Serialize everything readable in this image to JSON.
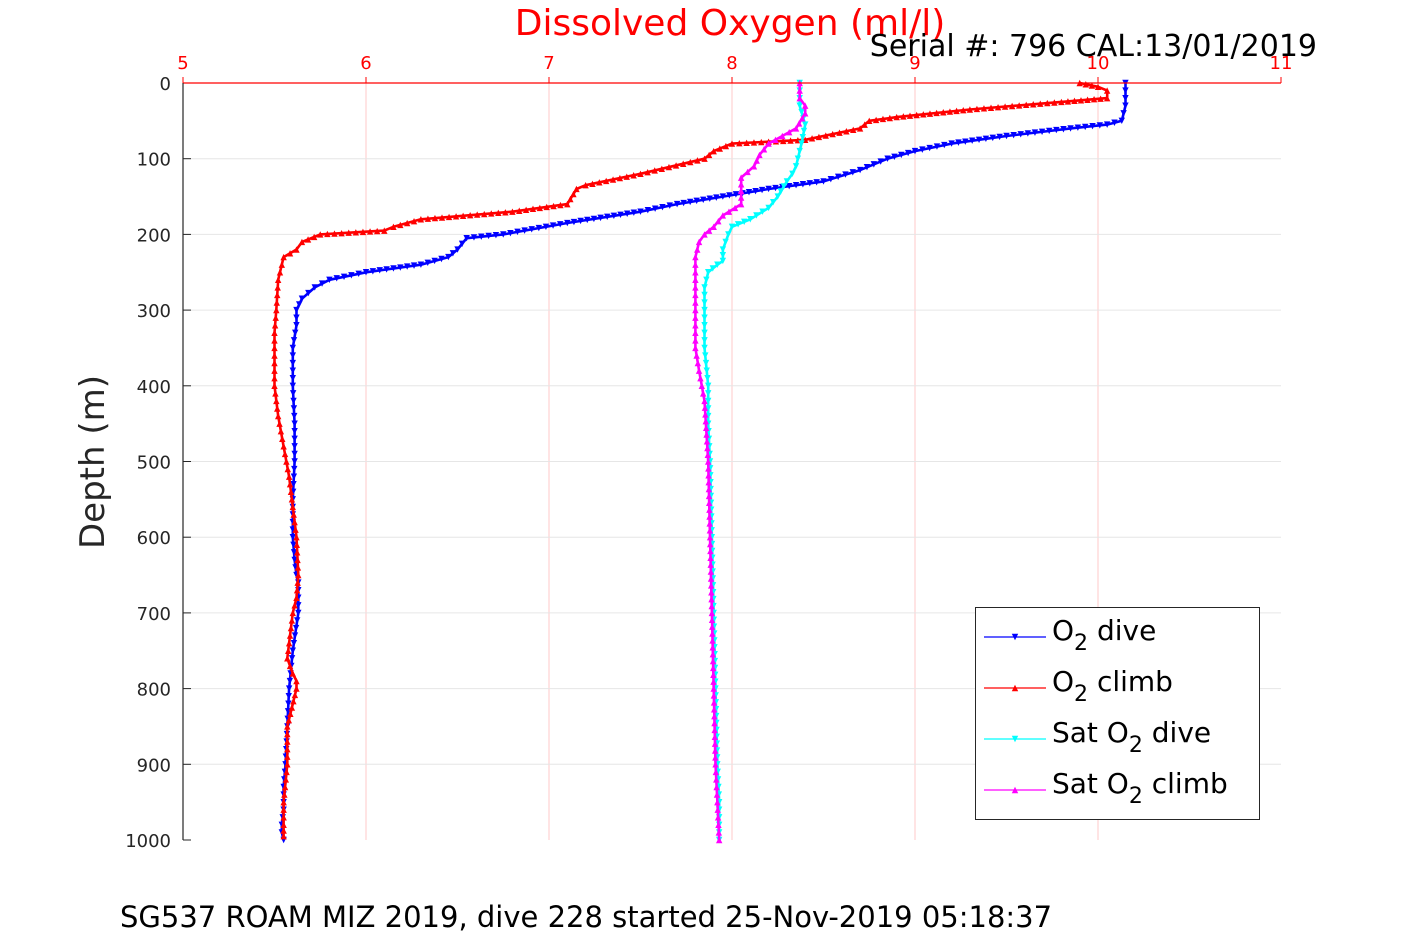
{
  "chart_data": {
    "type": "scatter",
    "title": "Dissolved Oxygen (ml/l)",
    "annotation": "Serial #: 796  CAL:13/01/2019",
    "footer": "SG537 ROAM MIZ 2019, dive 228 started 25-Nov-2019 05:18:37",
    "xlabel": "",
    "ylabel": "Depth (m)",
    "xlim": [
      5,
      11
    ],
    "ylim": [
      0,
      1000
    ],
    "y_reversed": true,
    "x_axis_location": "top",
    "x_ticks": [
      "5",
      "6",
      "7",
      "8",
      "9",
      "10",
      "11"
    ],
    "y_ticks": [
      "0",
      "100",
      "200",
      "300",
      "400",
      "500",
      "600",
      "700",
      "800",
      "900",
      "1000"
    ],
    "grid": true,
    "legend_position": "bottom-right",
    "legend": [
      {
        "pre": "O",
        "sub": "2",
        "post": " dive"
      },
      {
        "pre": "O",
        "sub": "2",
        "post": " climb"
      },
      {
        "pre": "Sat O",
        "sub": "2",
        "post": " dive"
      },
      {
        "pre": "Sat O",
        "sub": "2",
        "post": " climb"
      }
    ],
    "series": [
      {
        "color": "#0000ff",
        "marker": "triangle-down",
        "x": [
          10.15,
          10.15,
          10.13,
          10.05,
          9.85,
          9.5,
          9.2,
          9.0,
          8.85,
          8.7,
          8.5,
          8.2,
          7.95,
          7.7,
          7.5,
          7.1,
          6.75,
          6.55,
          6.5,
          6.45,
          6.3,
          6.0,
          5.8,
          5.72,
          5.65,
          5.62,
          5.62,
          5.6,
          5.6,
          5.6,
          5.61,
          5.61,
          5.6,
          5.6,
          5.61,
          5.62,
          5.63,
          5.63,
          5.6,
          5.58,
          5.57,
          5.56,
          5.55,
          5.55,
          5.55,
          5.54,
          5.54,
          5.55
        ],
        "y": [
          0,
          30,
          50,
          55,
          60,
          70,
          80,
          90,
          100,
          115,
          130,
          140,
          150,
          160,
          170,
          185,
          200,
          205,
          220,
          230,
          240,
          250,
          260,
          270,
          285,
          300,
          320,
          350,
          380,
          400,
          450,
          500,
          550,
          600,
          630,
          650,
          660,
          700,
          750,
          800,
          850,
          900,
          930,
          950,
          960,
          980,
          990,
          1000
        ]
      },
      {
        "color": "#ff0000",
        "marker": "triangle-up",
        "x": [
          9.9,
          10.0,
          10.05,
          10.05,
          9.8,
          9.3,
          8.9,
          8.75,
          8.7,
          8.4,
          8.0,
          7.9,
          7.85,
          7.5,
          7.2,
          7.15,
          7.1,
          6.8,
          6.3,
          6.15,
          6.1,
          5.75,
          5.65,
          5.62,
          5.55,
          5.52,
          5.51,
          5.5,
          5.5,
          5.5,
          5.52,
          5.55,
          5.58,
          5.6,
          5.62,
          5.63,
          5.62,
          5.6,
          5.58,
          5.57,
          5.6,
          5.62,
          5.62,
          5.57,
          5.57,
          5.55,
          5.55,
          5.55
        ],
        "y": [
          0,
          5,
          10,
          20,
          25,
          35,
          45,
          50,
          60,
          75,
          80,
          90,
          100,
          120,
          135,
          140,
          160,
          170,
          180,
          190,
          195,
          200,
          210,
          220,
          230,
          260,
          300,
          330,
          360,
          400,
          440,
          480,
          520,
          560,
          600,
          650,
          680,
          700,
          740,
          760,
          780,
          790,
          800,
          850,
          900,
          950,
          980,
          995
        ]
      },
      {
        "color": "#00ffff",
        "marker": "triangle-down",
        "x": [
          8.37,
          8.37,
          8.4,
          8.38,
          8.35,
          8.33,
          8.3,
          8.25,
          8.2,
          8.1,
          8.0,
          7.98,
          7.95,
          7.95,
          7.92,
          7.87,
          7.85,
          7.85,
          7.85,
          7.87,
          7.87,
          7.88,
          7.89,
          7.9,
          7.91,
          7.92,
          7.93,
          7.93
        ],
        "y": [
          0,
          30,
          55,
          80,
          110,
          120,
          130,
          150,
          165,
          180,
          190,
          200,
          220,
          235,
          240,
          250,
          270,
          300,
          350,
          400,
          450,
          500,
          600,
          700,
          800,
          900,
          950,
          1000
        ]
      },
      {
        "color": "#ff00ff",
        "marker": "triangle-up",
        "x": [
          8.37,
          8.37,
          8.4,
          8.4,
          8.35,
          8.2,
          8.15,
          8.12,
          8.05,
          8.05,
          7.95,
          7.9,
          7.85,
          7.82,
          7.8,
          7.8,
          7.8,
          7.8,
          7.82,
          7.85,
          7.87,
          7.88,
          7.89,
          7.9,
          7.91,
          7.92,
          7.93
        ],
        "y": [
          0,
          20,
          30,
          40,
          60,
          80,
          95,
          110,
          125,
          160,
          175,
          190,
          200,
          210,
          230,
          270,
          320,
          350,
          380,
          420,
          500,
          600,
          700,
          800,
          900,
          950,
          1000
        ]
      }
    ]
  }
}
